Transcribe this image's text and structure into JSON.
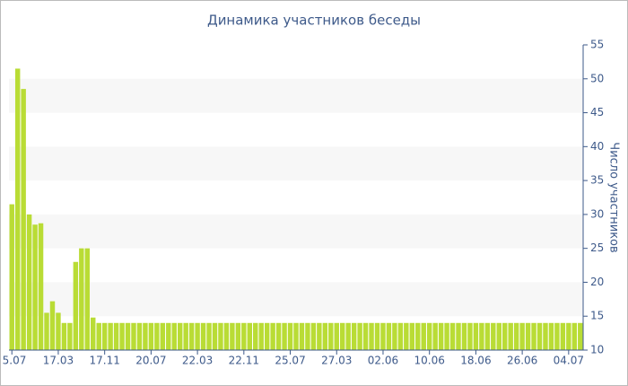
{
  "chart_data": {
    "type": "bar",
    "title": "Динамика участников беседы",
    "y_axis_label": "Число участников",
    "categories": [
      "5.07",
      null,
      null,
      null,
      null,
      null,
      null,
      null,
      "17.03",
      null,
      null,
      null,
      null,
      null,
      null,
      null,
      "17.11",
      null,
      null,
      null,
      null,
      null,
      null,
      null,
      "20.07",
      null,
      null,
      null,
      null,
      null,
      null,
      null,
      "22.03",
      null,
      null,
      null,
      null,
      null,
      null,
      null,
      "22.11",
      null,
      null,
      null,
      null,
      null,
      null,
      null,
      "25.07",
      null,
      null,
      null,
      null,
      null,
      null,
      null,
      "27.03",
      null,
      null,
      null,
      null,
      null,
      null,
      null,
      "02.06",
      null,
      null,
      null,
      null,
      null,
      null,
      null,
      "10.06",
      null,
      null,
      null,
      null,
      null,
      null,
      null,
      "18.06",
      null,
      null,
      null,
      null,
      null,
      null,
      null,
      "26.06",
      null,
      null,
      null,
      null,
      null,
      null,
      null,
      "04.07",
      null,
      null
    ],
    "values": [
      31.5,
      51.5,
      48.5,
      30,
      28.5,
      28.7,
      15.5,
      17.2,
      15.5,
      14,
      14,
      23,
      25,
      25,
      14.8,
      14,
      14,
      14,
      14,
      14,
      14,
      14,
      14,
      14,
      14,
      14,
      14,
      14,
      14,
      14,
      14,
      14,
      14,
      14,
      14,
      14,
      14,
      14,
      14,
      14,
      14,
      14,
      14,
      14,
      14,
      14,
      14,
      14,
      14,
      14,
      14,
      14,
      14,
      14,
      14,
      14,
      14,
      14,
      14,
      14,
      14,
      14,
      14,
      14,
      14,
      14,
      14,
      14,
      14,
      14,
      14,
      14,
      14,
      14,
      14,
      14,
      14,
      14,
      14,
      14,
      14,
      14,
      14,
      14,
      14,
      14,
      14,
      14,
      14,
      14,
      14,
      14,
      14,
      14,
      14,
      14,
      14,
      14,
      14
    ],
    "color": "#b9dc35",
    "ylim": [
      10,
      55
    ],
    "yticks": [
      10,
      15,
      20,
      25,
      30,
      35,
      40,
      45,
      50,
      55
    ],
    "grid": true,
    "y_axis_side": "right"
  }
}
